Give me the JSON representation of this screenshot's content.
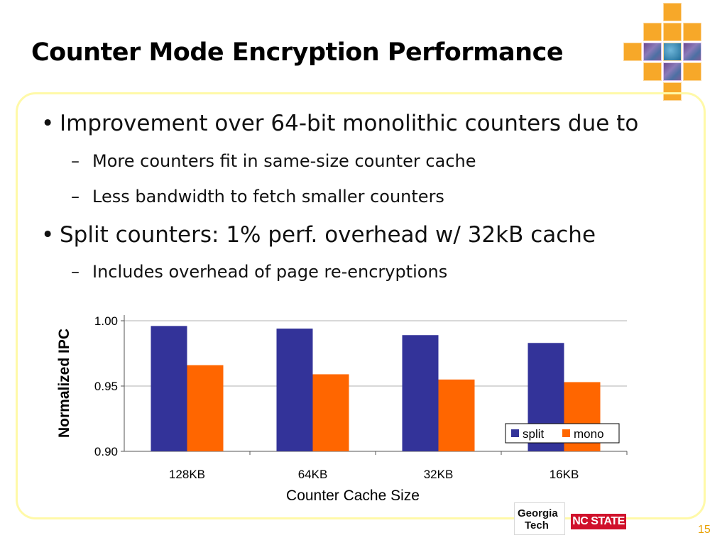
{
  "slide": {
    "title": "Counter Mode Encryption Performance",
    "page_number": "15",
    "accent_colors": {
      "frame": "#fff9a8",
      "logo_squares": "#f7a829",
      "page_number": "#e8a000"
    }
  },
  "bullets": [
    {
      "level": 1,
      "marker": "•",
      "text": "Improvement over 64-bit monolithic counters due to"
    },
    {
      "level": 2,
      "marker": "–",
      "text": "More counters fit in same-size counter cache"
    },
    {
      "level": 2,
      "marker": "–",
      "text": "Less bandwidth to fetch smaller counters"
    },
    {
      "level": 1,
      "marker": "•",
      "text": "Split counters: 1% perf. overhead w/ 32kB cache"
    },
    {
      "level": 2,
      "marker": "–",
      "text": "Includes overhead of page re-encryptions"
    }
  ],
  "logos": {
    "georgia_tech": [
      "Georgia",
      "Tech"
    ],
    "nc_state": "NC STATE"
  },
  "chart_data": {
    "type": "bar",
    "categories": [
      "128KB",
      "64KB",
      "32KB",
      "16KB"
    ],
    "series": [
      {
        "name": "split",
        "color": "#333399",
        "values": [
          0.996,
          0.994,
          0.989,
          0.983
        ]
      },
      {
        "name": "mono",
        "color": "#ff6600",
        "values": [
          0.966,
          0.959,
          0.955,
          0.953
        ]
      }
    ],
    "xlabel": "Counter Cache Size",
    "ylabel": "Normalized IPC",
    "ylim": [
      0.9,
      1.0
    ],
    "yticks": [
      "0.90",
      "0.95",
      "1.00"
    ],
    "grid": true,
    "legend_position": "bottom-right"
  }
}
